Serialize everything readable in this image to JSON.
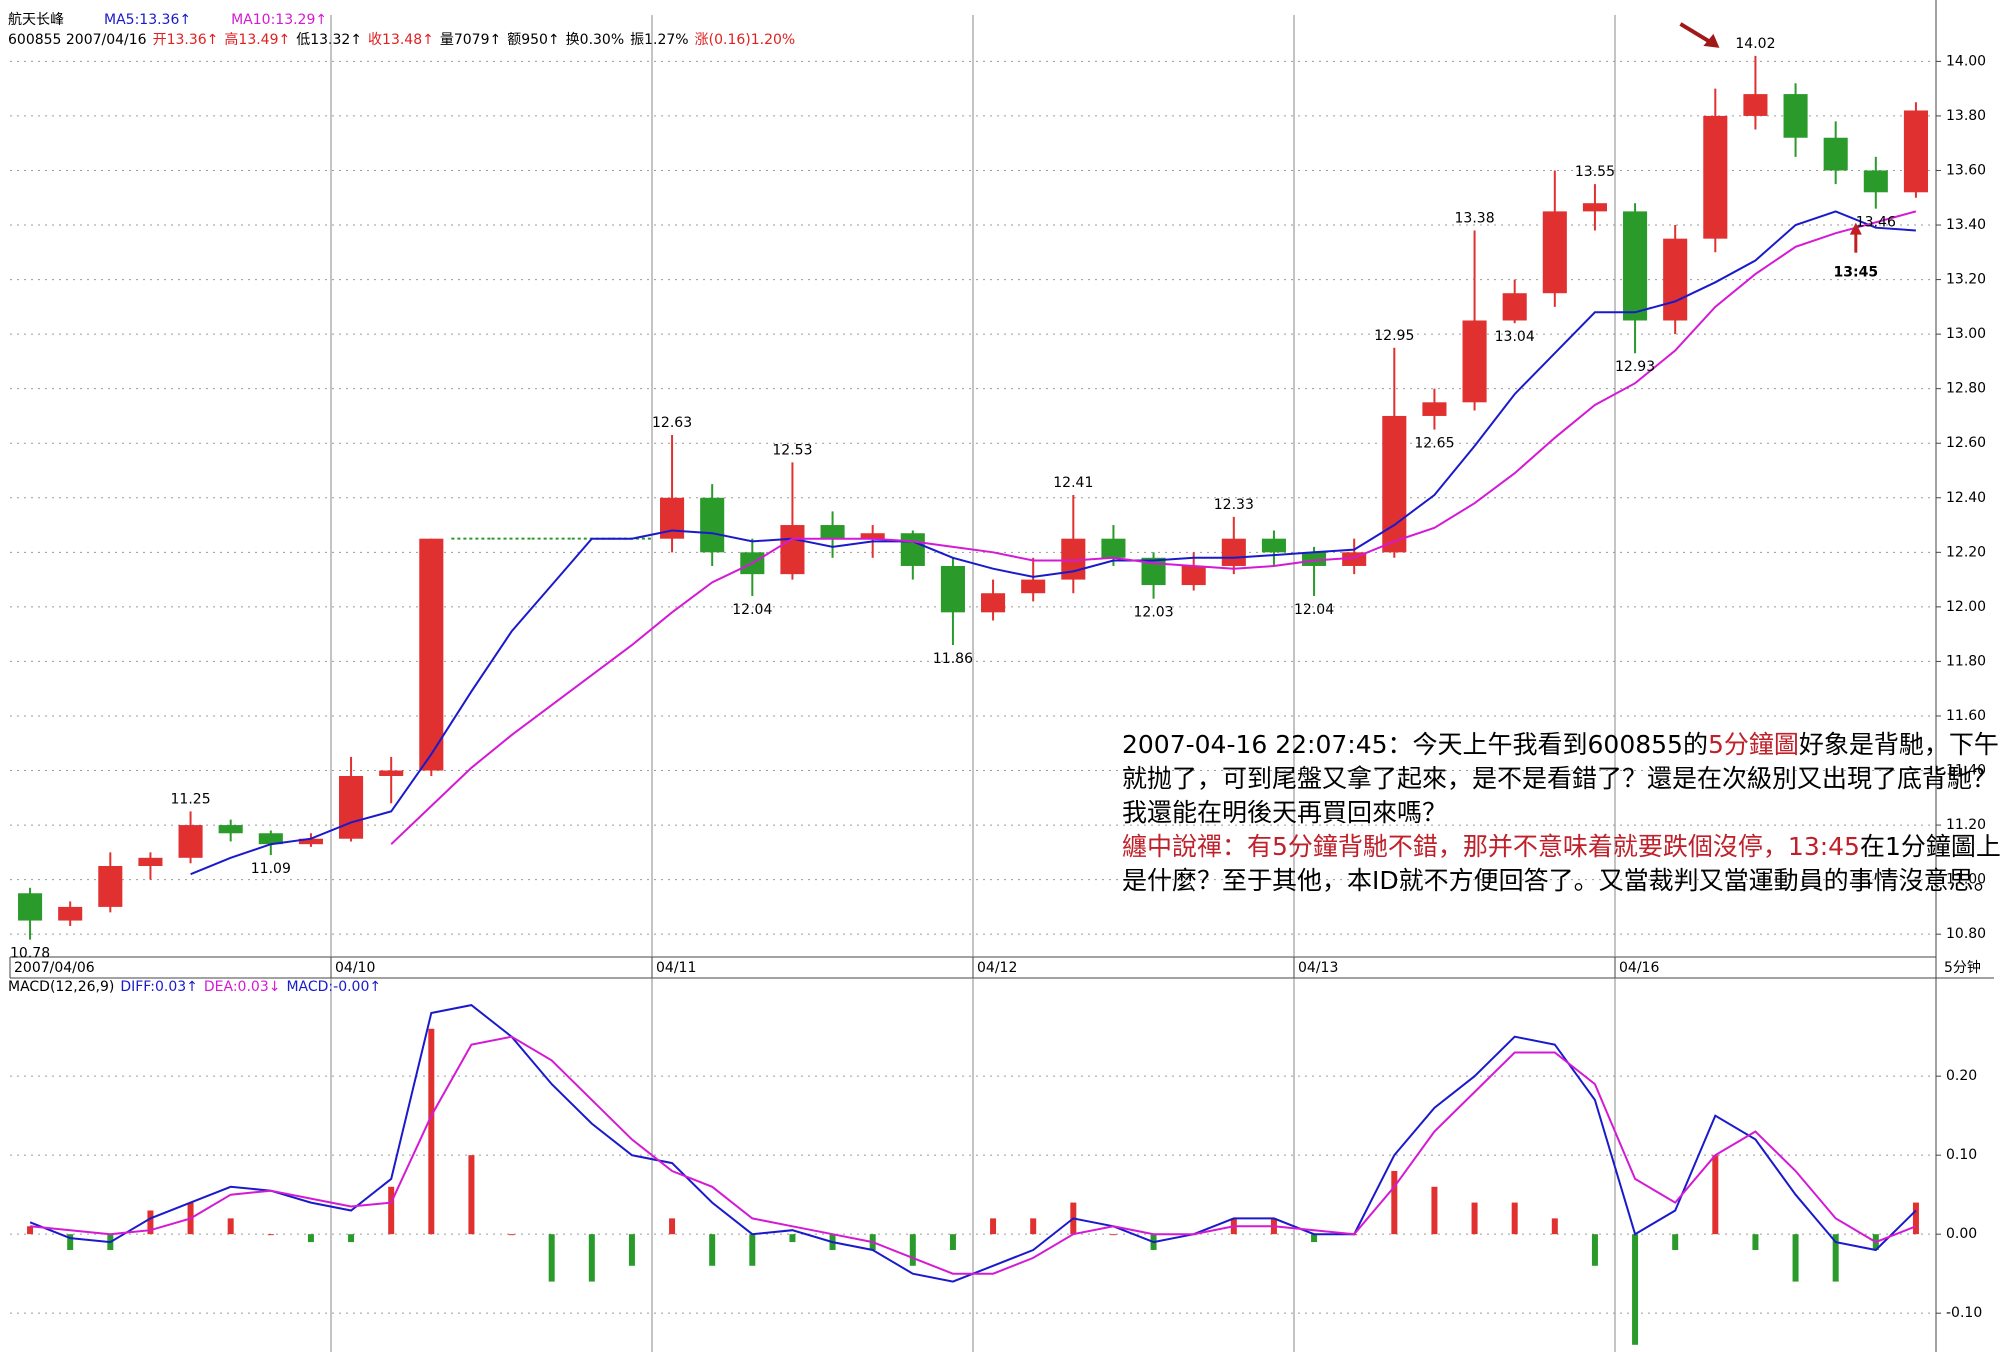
{
  "header": {
    "line1": [
      {
        "text": "航天长峰",
        "color": "#000000"
      },
      {
        "text": "MA5:13.36↑",
        "color": "#1a1acc"
      },
      {
        "text": "MA10:13.29↑",
        "color": "#d41ad4"
      }
    ],
    "line2": [
      {
        "text": "600855 2007/04/16",
        "color": "#000000"
      },
      {
        "text": "开13.36↑",
        "color": "#e02020"
      },
      {
        "text": "高13.49↑",
        "color": "#e02020"
      },
      {
        "text": "低13.32↑",
        "color": "#000000"
      },
      {
        "text": "收13.48↑",
        "color": "#e02020"
      },
      {
        "text": "量7079↑",
        "color": "#000000"
      },
      {
        "text": "额950↑",
        "color": "#000000"
      },
      {
        "text": "换0.30%",
        "color": "#000000"
      },
      {
        "text": "振1.27%",
        "color": "#000000"
      },
      {
        "text": "涨(0.16)1.20%",
        "color": "#e02020"
      }
    ]
  },
  "comment": {
    "lines": [
      [
        {
          "text": "2007-04-16 22:07:45：今天上午我看到600855的",
          "color": "#000000"
        },
        {
          "text": "5分鐘圖",
          "color": "#c0202a"
        },
        {
          "text": "好象是背馳，下午",
          "color": "#000000"
        }
      ],
      [
        {
          "text": "就抛了，可到尾盤又拿了起來，是不是看錯了？還是在次級別又出現了底背馳？",
          "color": "#000000"
        }
      ],
      [
        {
          "text": "我還能在明後天再買回來嗎？",
          "color": "#000000"
        }
      ],
      [
        {
          "text": "纏中說禪：有5分鐘背馳不錯，那并不意味着就要跌個沒停，13:45",
          "color": "#c0202a"
        },
        {
          "text": "在1分鐘圖上",
          "color": "#000000"
        }
      ],
      [
        {
          "text": "是什麼？至于其他，本ID就不方便回答了。又當裁判又當運動員的事情沒意思。",
          "color": "#000000"
        }
      ]
    ]
  },
  "chart_data": [
    {
      "type": "candlestick",
      "categories": [
        "2007/04/06",
        null,
        null,
        null,
        null,
        null,
        null,
        null,
        "04/10",
        null,
        null,
        null,
        null,
        null,
        null,
        null,
        "04/11",
        null,
        null,
        null,
        null,
        null,
        null,
        null,
        "04/12",
        null,
        null,
        null,
        null,
        null,
        null,
        null,
        "04/13",
        null,
        null,
        null,
        null,
        null,
        null,
        null,
        "04/16",
        null,
        null,
        null,
        null,
        null,
        null,
        null
      ],
      "open": [
        10.95,
        10.85,
        10.9,
        11.05,
        11.08,
        11.2,
        11.17,
        11.13,
        11.15,
        11.38,
        11.4,
        12.25,
        12.25,
        12.25,
        12.25,
        12.25,
        12.25,
        12.4,
        12.2,
        12.12,
        12.3,
        12.25,
        12.27,
        12.15,
        11.98,
        12.05,
        12.1,
        12.25,
        12.18,
        12.08,
        12.15,
        12.25,
        12.2,
        12.15,
        12.2,
        12.7,
        12.75,
        13.05,
        13.15,
        13.45,
        13.45,
        13.05,
        13.35,
        13.8,
        13.88,
        13.72,
        13.6,
        13.52
      ],
      "high": [
        10.97,
        10.92,
        11.1,
        11.1,
        11.25,
        11.22,
        11.18,
        11.17,
        11.45,
        11.45,
        12.25,
        12.25,
        12.25,
        12.25,
        12.25,
        12.25,
        12.63,
        12.45,
        12.25,
        12.53,
        12.35,
        12.3,
        12.28,
        12.18,
        12.1,
        12.18,
        12.41,
        12.3,
        12.2,
        12.2,
        12.33,
        12.28,
        12.22,
        12.25,
        12.95,
        12.8,
        13.38,
        13.2,
        13.6,
        13.55,
        13.48,
        13.4,
        13.9,
        14.02,
        13.92,
        13.78,
        13.65,
        13.85
      ],
      "low": [
        10.78,
        10.83,
        10.88,
        11.0,
        11.06,
        11.14,
        11.09,
        11.12,
        11.14,
        11.28,
        11.38,
        12.25,
        12.25,
        12.25,
        12.25,
        12.25,
        12.2,
        12.15,
        12.04,
        12.1,
        12.18,
        12.18,
        12.1,
        11.86,
        11.95,
        12.02,
        12.05,
        12.15,
        12.03,
        12.06,
        12.12,
        12.15,
        12.04,
        12.12,
        12.18,
        12.65,
        12.72,
        13.04,
        13.1,
        13.38,
        12.93,
        13.0,
        13.3,
        13.75,
        13.65,
        13.55,
        13.46,
        13.5
      ],
      "close": [
        10.85,
        10.9,
        11.05,
        11.08,
        11.2,
        11.17,
        11.13,
        11.15,
        11.38,
        11.4,
        12.25,
        12.25,
        12.25,
        12.25,
        12.25,
        12.25,
        12.4,
        12.2,
        12.12,
        12.3,
        12.25,
        12.27,
        12.15,
        11.98,
        12.05,
        12.1,
        12.25,
        12.18,
        12.08,
        12.15,
        12.25,
        12.2,
        12.15,
        12.2,
        12.7,
        12.75,
        13.05,
        13.15,
        13.45,
        13.48,
        13.05,
        13.35,
        13.8,
        13.88,
        13.72,
        13.6,
        13.52,
        13.82
      ],
      "up_color": "#e03030",
      "down_color": "#2a9a2a",
      "series": [
        {
          "color": "#1a1acc",
          "values": [
            null,
            null,
            null,
            null,
            11.02,
            11.08,
            11.13,
            11.15,
            11.21,
            11.25,
            11.46,
            11.69,
            11.91,
            12.08,
            12.25,
            12.25,
            12.28,
            12.27,
            12.24,
            12.25,
            12.22,
            12.24,
            12.24,
            12.18,
            12.14,
            12.11,
            12.13,
            12.17,
            12.17,
            12.18,
            12.18,
            12.19,
            12.2,
            12.21,
            12.3,
            12.41,
            12.59,
            12.78,
            12.93,
            13.08,
            13.08,
            13.12,
            13.19,
            13.27,
            13.4,
            13.45,
            13.39,
            13.38
          ]
        },
        {
          "color": "#d41ad4",
          "values": [
            null,
            null,
            null,
            null,
            null,
            null,
            null,
            null,
            null,
            11.13,
            11.27,
            11.41,
            11.53,
            11.64,
            11.75,
            11.86,
            11.98,
            12.09,
            12.16,
            12.25,
            12.25,
            12.25,
            12.24,
            12.22,
            12.2,
            12.17,
            12.17,
            12.18,
            12.16,
            12.15,
            12.14,
            12.15,
            12.17,
            12.18,
            12.24,
            12.29,
            12.38,
            12.49,
            12.62,
            12.74,
            12.82,
            12.94,
            13.1,
            13.22,
            13.32,
            13.37,
            13.41,
            13.45
          ]
        }
      ],
      "annotations": [
        {
          "label": "14.02",
          "value": 14.02
        },
        {
          "label": "13.46",
          "value": 13.46
        },
        {
          "label": "13.55",
          "value": 13.55
        },
        {
          "label": "13.38",
          "value": 13.38
        },
        {
          "label": "12.95",
          "value": 12.95
        },
        {
          "label": "13.04",
          "value": 13.04
        },
        {
          "label": "12.65",
          "value": 12.65
        },
        {
          "label": "12.93",
          "value": 12.93
        },
        {
          "label": "12.63",
          "value": 12.63
        },
        {
          "label": "12.53",
          "value": 12.53
        },
        {
          "label": "12.04",
          "value": 12.04
        },
        {
          "label": "11.86",
          "value": 11.86
        },
        {
          "label": "12.41",
          "value": 12.41
        },
        {
          "label": "12.03",
          "value": 12.03
        },
        {
          "label": "12.33",
          "value": 12.33
        },
        {
          "label": "12.04",
          "value": 12.04
        },
        {
          "label": "11.25",
          "value": 11.25
        },
        {
          "label": "11.09",
          "value": 11.09
        },
        {
          "label": "10.78",
          "value": 10.78
        }
      ],
      "note": "13:45",
      "period": "5分钟",
      "ylim": [
        10.72,
        14.17
      ],
      "yticks": [
        {
          "value": 10.8,
          "label": "10.80"
        },
        {
          "value": 11.0,
          "label": "11.00"
        },
        {
          "value": 11.2,
          "label": "11.20"
        },
        {
          "value": 11.4,
          "label": "11.40"
        },
        {
          "value": 11.6,
          "label": "11.60"
        },
        {
          "value": 11.8,
          "label": "11.80"
        },
        {
          "value": 12.0,
          "label": "12.00"
        },
        {
          "value": 12.2,
          "label": "12.20"
        },
        {
          "value": 12.4,
          "label": "12.40"
        },
        {
          "value": 12.6,
          "label": "12.60"
        },
        {
          "value": 12.8,
          "label": "12.80"
        },
        {
          "value": 13.0,
          "label": "13.00"
        },
        {
          "value": 13.2,
          "label": "13.20"
        },
        {
          "value": 13.4,
          "label": "13.40"
        },
        {
          "value": 13.6,
          "label": "13.60"
        },
        {
          "value": 13.8,
          "label": "13.80"
        },
        {
          "value": 14.0,
          "label": "14.00"
        }
      ],
      "grid": true
    },
    {
      "type": "macd",
      "header": [
        {
          "text": "MACD(12,26,9)",
          "color": "#000000"
        },
        {
          "text": "DIFF:0.03↑",
          "color": "#1a1acc"
        },
        {
          "text": "DEA:0.03↓",
          "color": "#d41ad4"
        },
        {
          "text": "MACD:-0.00↑",
          "color": "#1a1acc"
        }
      ],
      "series": [
        {
          "color": "#1a1acc",
          "values": [
            0.015,
            -0.005,
            -0.01,
            0.02,
            0.04,
            0.06,
            0.055,
            0.04,
            0.03,
            0.07,
            0.28,
            0.29,
            0.25,
            0.19,
            0.14,
            0.1,
            0.09,
            0.04,
            0.0,
            0.005,
            -0.01,
            -0.02,
            -0.05,
            -0.06,
            -0.04,
            -0.02,
            0.02,
            0.01,
            -0.01,
            0.0,
            0.02,
            0.02,
            0.0,
            0.0,
            0.1,
            0.16,
            0.2,
            0.25,
            0.24,
            0.17,
            0.0,
            0.03,
            0.15,
            0.12,
            0.05,
            -0.01,
            -0.02,
            0.03
          ]
        },
        {
          "color": "#d41ad4",
          "values": [
            0.01,
            0.005,
            0.0,
            0.005,
            0.02,
            0.05,
            0.055,
            0.045,
            0.035,
            0.04,
            0.15,
            0.24,
            0.25,
            0.22,
            0.17,
            0.12,
            0.08,
            0.06,
            0.02,
            0.01,
            0.0,
            -0.01,
            -0.03,
            -0.05,
            -0.05,
            -0.03,
            0.0,
            0.01,
            0.0,
            0.0,
            0.01,
            0.01,
            0.005,
            0.0,
            0.06,
            0.13,
            0.18,
            0.23,
            0.23,
            0.19,
            0.07,
            0.04,
            0.1,
            0.13,
            0.08,
            0.02,
            -0.01,
            0.01
          ]
        }
      ],
      "histogram": {
        "up_color": "#e03030",
        "down_color": "#2a9a2a",
        "values": [
          0.01,
          -0.02,
          -0.02,
          0.03,
          0.04,
          0.02,
          0.0,
          -0.01,
          -0.01,
          0.06,
          0.26,
          0.1,
          0.0,
          -0.06,
          -0.06,
          -0.04,
          0.02,
          -0.04,
          -0.04,
          -0.01,
          -0.02,
          -0.02,
          -0.04,
          -0.02,
          0.02,
          0.02,
          0.04,
          0.0,
          -0.02,
          0.0,
          0.02,
          0.02,
          -0.01,
          0.0,
          0.08,
          0.06,
          0.04,
          0.04,
          0.02,
          -0.04,
          -0.14,
          -0.02,
          0.1,
          -0.02,
          -0.06,
          -0.06,
          -0.02,
          0.04
        ]
      },
      "ylim": [
        -0.139,
        0.304
      ],
      "yticks": [
        {
          "value": -0.1,
          "label": "-0.10"
        },
        {
          "value": 0.0,
          "label": "0.00"
        },
        {
          "value": 0.1,
          "label": "0.10"
        },
        {
          "value": 0.2,
          "label": "0.20"
        }
      ],
      "grid": true
    }
  ]
}
